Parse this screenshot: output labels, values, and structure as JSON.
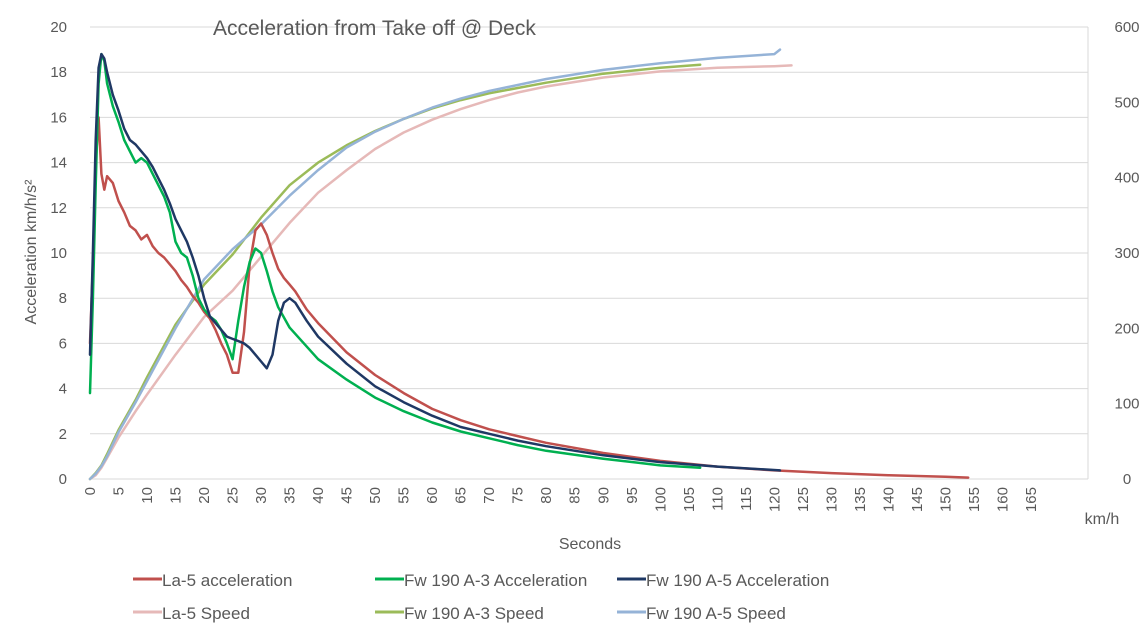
{
  "chart_data": {
    "type": "line",
    "title": "Acceleration from Take off @ Deck",
    "xlabel": "Seconds",
    "ylabel": "Acceleration km/h/s²",
    "y2label": "km/h",
    "xlim": [
      0,
      175
    ],
    "xticks": [
      0,
      5,
      10,
      15,
      20,
      25,
      30,
      35,
      40,
      45,
      50,
      55,
      60,
      65,
      70,
      75,
      80,
      85,
      90,
      95,
      100,
      105,
      110,
      115,
      120,
      125,
      130,
      135,
      140,
      145,
      150,
      155,
      160,
      165
    ],
    "ylim": [
      0,
      20
    ],
    "yticks": [
      0,
      2,
      4,
      6,
      8,
      10,
      12,
      14,
      16,
      18,
      20
    ],
    "y2lim": [
      0,
      600
    ],
    "y2ticks": [
      0,
      100,
      200,
      300,
      400,
      500,
      600
    ],
    "grid": true,
    "legend_position": "bottom",
    "series": [
      {
        "name": "La-5 acceleration",
        "axis": "left",
        "color": "#c0504d",
        "x": [
          0,
          0.5,
          1,
          1.5,
          2,
          2.5,
          3,
          4,
          5,
          6,
          7,
          8,
          9,
          10,
          11,
          12,
          13,
          14,
          15,
          16,
          17,
          18,
          19,
          20,
          21,
          22,
          23,
          24,
          25,
          26,
          27,
          28,
          29,
          30,
          31,
          32,
          33,
          34,
          35,
          36,
          38,
          40,
          45,
          50,
          55,
          60,
          65,
          70,
          75,
          80,
          90,
          100,
          110,
          120,
          130,
          140,
          150,
          154
        ],
        "y": [
          6,
          9.5,
          14,
          16,
          13.5,
          12.8,
          13.4,
          13.1,
          12.3,
          11.8,
          11.2,
          11,
          10.6,
          10.8,
          10.3,
          10,
          9.8,
          9.5,
          9.2,
          8.8,
          8.5,
          8.1,
          7.8,
          7.4,
          7.1,
          6.6,
          6,
          5.5,
          4.7,
          4.7,
          6.5,
          9.5,
          11,
          11.3,
          10.8,
          10,
          9.3,
          8.9,
          8.6,
          8.3,
          7.5,
          6.9,
          5.6,
          4.6,
          3.8,
          3.1,
          2.6,
          2.2,
          1.9,
          1.6,
          1.15,
          0.8,
          0.55,
          0.38,
          0.26,
          0.17,
          0.1,
          0.06
        ]
      },
      {
        "name": "Fw 190 A-3 Acceleration",
        "axis": "left",
        "color": "#00b050",
        "x": [
          0,
          0.5,
          1,
          1.5,
          2,
          2.5,
          3,
          4,
          5,
          6,
          7,
          8,
          9,
          10,
          11,
          12,
          13,
          14,
          15,
          16,
          17,
          18,
          19,
          20,
          21,
          22,
          23,
          24,
          25,
          26,
          27,
          28,
          29,
          30,
          31,
          32,
          33,
          35,
          40,
          45,
          50,
          55,
          60,
          65,
          70,
          75,
          80,
          90,
          100,
          107
        ],
        "y": [
          3.8,
          8,
          13,
          17.5,
          18.8,
          18.5,
          17.5,
          16.5,
          15.8,
          15,
          14.5,
          14,
          14.2,
          14,
          13.5,
          13,
          12.5,
          11.8,
          10.5,
          10,
          9.8,
          9,
          8,
          7.5,
          7.2,
          7,
          6.6,
          6,
          5.3,
          7,
          8.5,
          9.6,
          10.2,
          10,
          9.2,
          8.3,
          7.6,
          6.7,
          5.3,
          4.4,
          3.6,
          3,
          2.5,
          2.1,
          1.8,
          1.5,
          1.25,
          0.9,
          0.6,
          0.5
        ]
      },
      {
        "name": "Fw 190 A-5 Acceleration",
        "axis": "left",
        "color": "#1f3864",
        "x": [
          0,
          0.5,
          1,
          1.5,
          2,
          2.5,
          3,
          4,
          5,
          6,
          7,
          8,
          9,
          10,
          11,
          12,
          13,
          14,
          15,
          16,
          17,
          18,
          19,
          20,
          21,
          22,
          23,
          24,
          25,
          26,
          27,
          28,
          29,
          30,
          31,
          32,
          33,
          34,
          35,
          36,
          37,
          38,
          40,
          45,
          50,
          55,
          60,
          65,
          70,
          75,
          80,
          90,
          100,
          110,
          121
        ],
        "y": [
          5.5,
          10,
          15,
          18.2,
          18.8,
          18.6,
          18,
          17,
          16.3,
          15.5,
          15,
          14.8,
          14.5,
          14.2,
          13.8,
          13.3,
          12.8,
          12.2,
          11.5,
          11,
          10.5,
          9.8,
          9,
          8,
          7.2,
          6.9,
          6.6,
          6.3,
          6.2,
          6.1,
          6,
          5.8,
          5.5,
          5.2,
          4.9,
          5.5,
          7,
          7.8,
          8,
          7.8,
          7.4,
          7,
          6.3,
          5.1,
          4.1,
          3.4,
          2.8,
          2.3,
          2,
          1.7,
          1.45,
          1.05,
          0.75,
          0.55,
          0.38
        ]
      },
      {
        "name": "La-5 Speed",
        "axis": "right",
        "color": "#e6b9b8",
        "x": [
          0,
          1,
          2,
          3,
          5,
          8,
          10,
          15,
          20,
          25,
          30,
          35,
          40,
          45,
          50,
          55,
          60,
          65,
          70,
          75,
          80,
          90,
          100,
          110,
          120,
          123
        ],
        "y": [
          0,
          5,
          15,
          28,
          55,
          90,
          112,
          165,
          215,
          250,
          295,
          340,
          380,
          410,
          438,
          460,
          477,
          491,
          503,
          513,
          521,
          533,
          541,
          546,
          548,
          549
        ]
      },
      {
        "name": "Fw 190 A-3 Speed",
        "axis": "right",
        "color": "#9bbb59",
        "x": [
          0,
          1,
          2,
          3,
          5,
          8,
          10,
          15,
          20,
          25,
          30,
          35,
          40,
          45,
          50,
          55,
          60,
          65,
          70,
          75,
          80,
          90,
          100,
          107
        ],
        "y": [
          0,
          8,
          18,
          33,
          65,
          105,
          135,
          205,
          258,
          298,
          347,
          390,
          420,
          443,
          462,
          478,
          492,
          503,
          512,
          519,
          526,
          538,
          546,
          550
        ]
      },
      {
        "name": "Fw 190 A-5 Speed",
        "axis": "right",
        "color": "#95b3d7",
        "x": [
          0,
          1,
          2,
          3,
          5,
          8,
          10,
          15,
          20,
          25,
          30,
          35,
          40,
          45,
          50,
          55,
          60,
          65,
          70,
          75,
          80,
          90,
          100,
          110,
          120,
          121
        ],
        "y": [
          0,
          7,
          17,
          30,
          62,
          102,
          130,
          200,
          265,
          305,
          338,
          376,
          410,
          440,
          461,
          478,
          493,
          505,
          515,
          523,
          531,
          543,
          552,
          559,
          564,
          570
        ]
      }
    ]
  }
}
